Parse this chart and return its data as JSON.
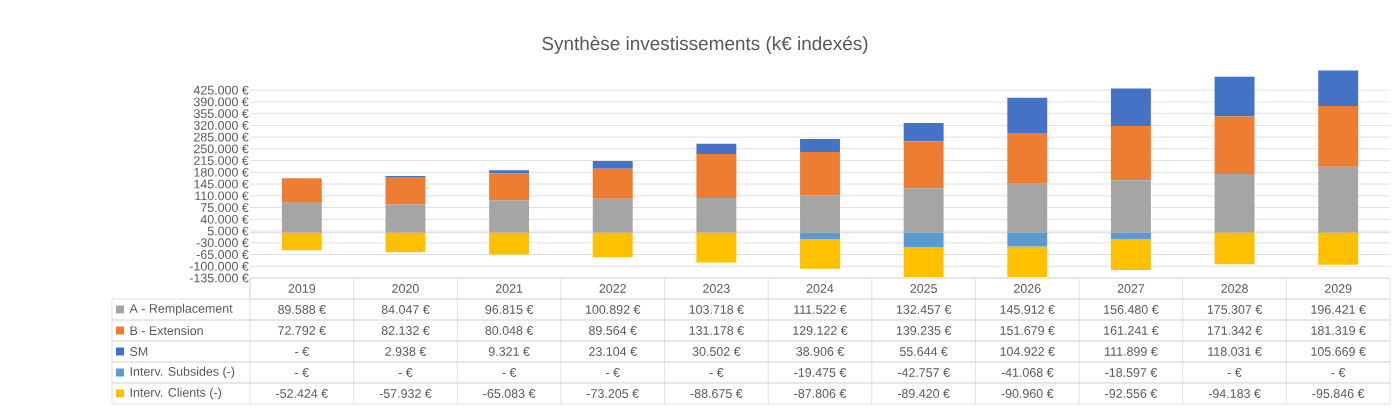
{
  "chart_data": {
    "type": "bar",
    "title": "Synthèse investissements (k€ indexés)",
    "stacked": true,
    "grid": "y",
    "legend": "bottom",
    "categories": [
      "2019",
      "2020",
      "2021",
      "2022",
      "2023",
      "2024",
      "2025",
      "2026",
      "2027",
      "2028",
      "2029"
    ],
    "ylim": [
      -135000,
      485000
    ],
    "yticks": [
      {
        "value": -135000,
        "label": "-135.000 €"
      },
      {
        "value": -100000,
        "label": "-100.000 €"
      },
      {
        "value": -65000,
        "label": "-65.000 €"
      },
      {
        "value": -30000,
        "label": "-30.000 €"
      },
      {
        "value": 5000,
        "label": "5.000 €"
      },
      {
        "value": 40000,
        "label": "40.000 €"
      },
      {
        "value": 75000,
        "label": "75.000 €"
      },
      {
        "value": 110000,
        "label": "110.000 €"
      },
      {
        "value": 145000,
        "label": "145.000 €"
      },
      {
        "value": 180000,
        "label": "180.000 €"
      },
      {
        "value": 215000,
        "label": "215.000 €"
      },
      {
        "value": 250000,
        "label": "250.000 €"
      },
      {
        "value": 285000,
        "label": "285.000 €"
      },
      {
        "value": 320000,
        "label": "320.000 €"
      },
      {
        "value": 355000,
        "label": "355.000 €"
      },
      {
        "value": 390000,
        "label": "390.000 €"
      },
      {
        "value": 425000,
        "label": "425.000 €"
      }
    ],
    "series": [
      {
        "name": "A - Remplacement",
        "color": "#a5a5a5",
        "values": [
          89588,
          84047,
          96815,
          100892,
          103718,
          111522,
          132457,
          145912,
          156480,
          175307,
          196421
        ],
        "value_labels": [
          "89.588 €",
          "84.047 €",
          "96.815 €",
          "100.892 €",
          "103.718 €",
          "111.522 €",
          "132.457 €",
          "145.912 €",
          "156.480 €",
          "175.307 €",
          "196.421 €"
        ]
      },
      {
        "name": "B - Extension",
        "color": "#ed7d31",
        "values": [
          72792,
          82132,
          80048,
          89564,
          131178,
          129122,
          139235,
          151679,
          161241,
          171342,
          181319
        ],
        "value_labels": [
          "72.792 €",
          "82.132 €",
          "80.048 €",
          "89.564 €",
          "131.178 €",
          "129.122 €",
          "139.235 €",
          "151.679 €",
          "161.241 €",
          "171.342 €",
          "181.319 €"
        ]
      },
      {
        "name": "SM",
        "color": "#4472c4",
        "values": [
          0,
          2938,
          9321,
          23104,
          30502,
          38906,
          55644,
          104922,
          111899,
          118031,
          105669
        ],
        "value_labels": [
          "-  €",
          "2.938 €",
          "9.321 €",
          "23.104 €",
          "30.502 €",
          "38.906 €",
          "55.644 €",
          "104.922 €",
          "111.899 €",
          "118.031 €",
          "105.669 €"
        ]
      },
      {
        "name": "Interv. Subsides (-)",
        "color": "#5b9bd5",
        "values": [
          0,
          0,
          0,
          0,
          0,
          -19475,
          -42757,
          -41068,
          -18597,
          0,
          0
        ],
        "value_labels": [
          "-  €",
          "-  €",
          "-  €",
          "-  €",
          "-  €",
          "-19.475 €",
          "-42.757 €",
          "-41.068 €",
          "-18.597 €",
          "-  €",
          "-  €"
        ]
      },
      {
        "name": "Interv. Clients (-)",
        "color": "#ffc000",
        "values": [
          -52424,
          -57932,
          -65083,
          -73205,
          -88675,
          -87806,
          -89420,
          -90960,
          -92556,
          -94183,
          -95846
        ],
        "value_labels": [
          "-52.424 €",
          "-57.932 €",
          "-65.083 €",
          "-73.205 €",
          "-88.675 €",
          "-87.806 €",
          "-89.420 €",
          "-90.960 €",
          "-92.556 €",
          "-94.183 €",
          "-95.846 €"
        ]
      }
    ]
  }
}
